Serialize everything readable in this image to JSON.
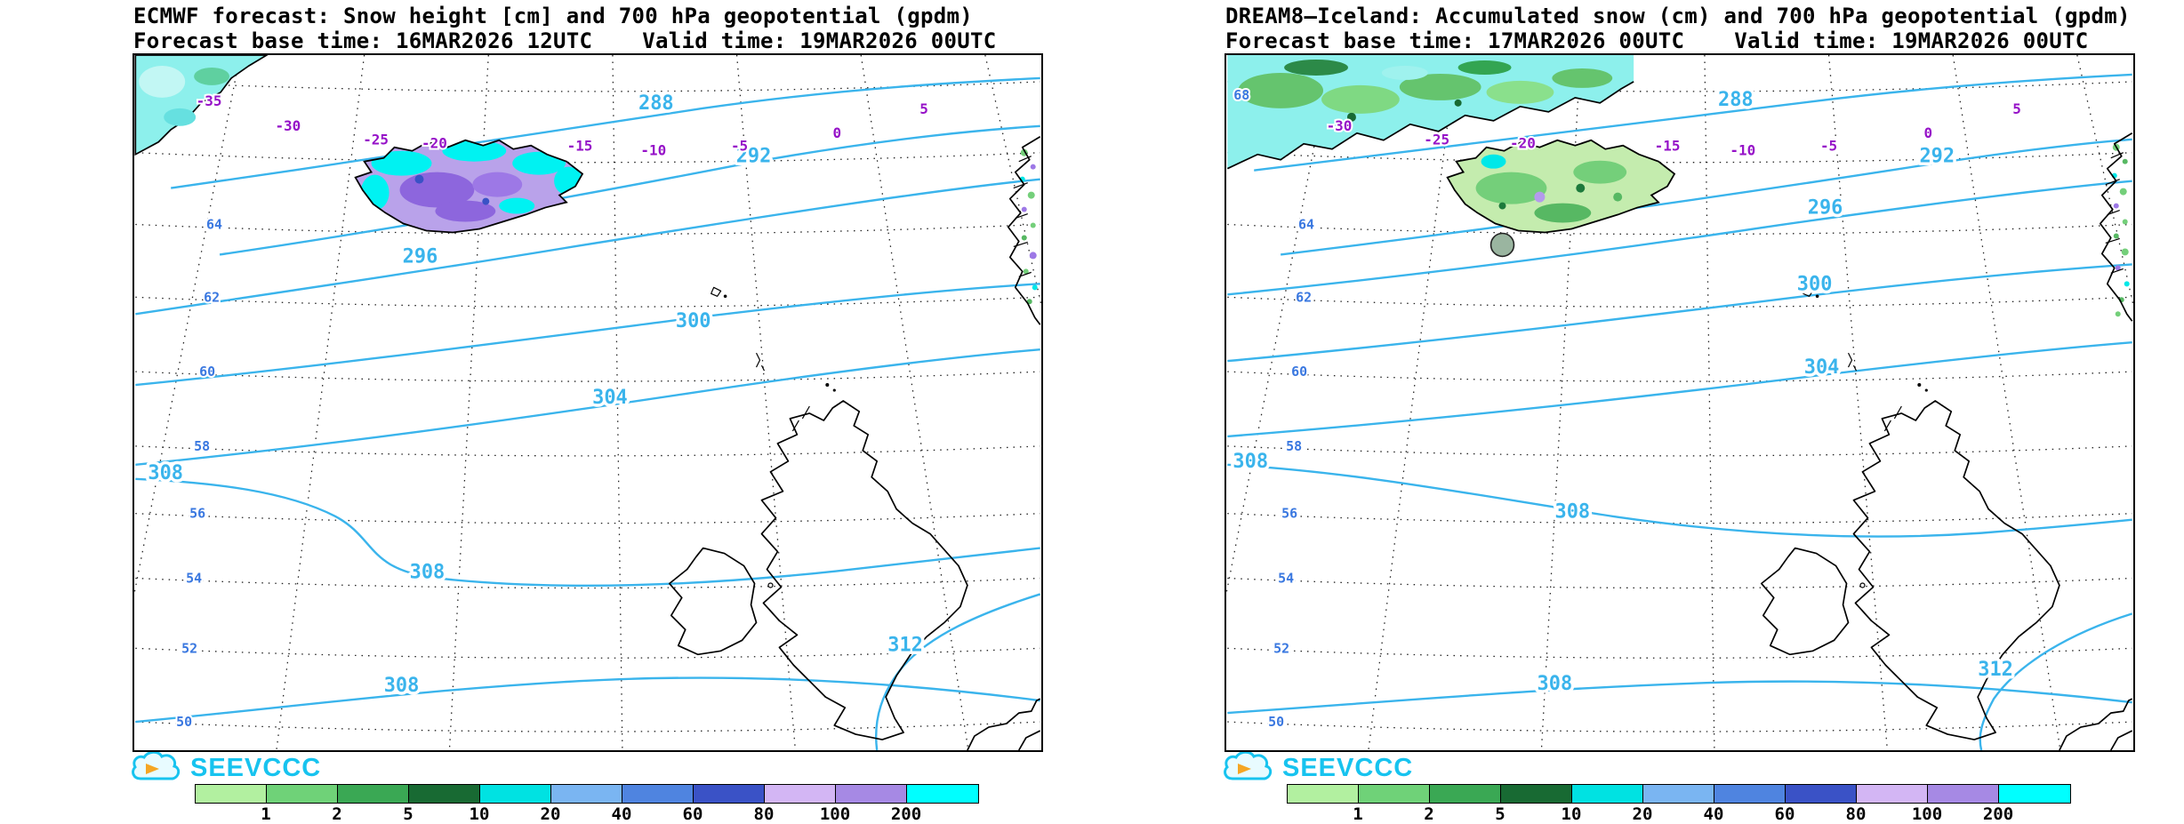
{
  "panels": [
    {
      "title": "ECMWF forecast: Snow height [cm] and 700 hPa geopotential (gpdm)",
      "base_time": "Forecast base time: 16MAR2026 12UTC",
      "valid_time": "Valid time: 19MAR2026 00UTC",
      "contour_labels": [
        "288",
        "292",
        "296",
        "300",
        "304",
        "308",
        "308",
        "312",
        "308"
      ],
      "temp_labels": [
        "-35",
        "-30",
        "-25",
        "-20",
        "-15",
        "-10",
        "-5",
        "0",
        "5"
      ],
      "lat_labels": [
        "64",
        "62",
        "60",
        "58",
        "56",
        "54",
        "52",
        "50"
      ]
    },
    {
      "title": "DREAM8–Iceland: Accumulated snow (cm) and 700 hPa geopotential (gpdm)",
      "base_time": "Forecast base time: 17MAR2026 00UTC",
      "valid_time": "Valid time: 19MAR2026 00UTC",
      "contour_labels": [
        "288",
        "292",
        "296",
        "300",
        "304",
        "308",
        "308",
        "312",
        "308"
      ],
      "temp_labels": [
        "-30",
        "-25",
        "-20",
        "-15",
        "-10",
        "-5",
        "0",
        "5"
      ],
      "lat_labels": [
        "68",
        "64",
        "62",
        "60",
        "58",
        "56",
        "54",
        "52",
        "50"
      ]
    }
  ],
  "colorbar": {
    "values": [
      "1",
      "2",
      "5",
      "10",
      "20",
      "40",
      "60",
      "80",
      "100",
      "200"
    ],
    "colors": [
      "#b2f0a0",
      "#6fd278",
      "#3aa854",
      "#186a33",
      "#00e2e2",
      "#7ab5f2",
      "#4f84e0",
      "#3a52c6",
      "#d3b6f4",
      "#a689e4",
      "#00ffff"
    ]
  },
  "logo": {
    "text": "SEEVCCC"
  },
  "colors": {
    "contour": "#3ab4ec",
    "temp": "#9612c8",
    "lat": "#3a78e0",
    "brand": "#17c3ef"
  }
}
